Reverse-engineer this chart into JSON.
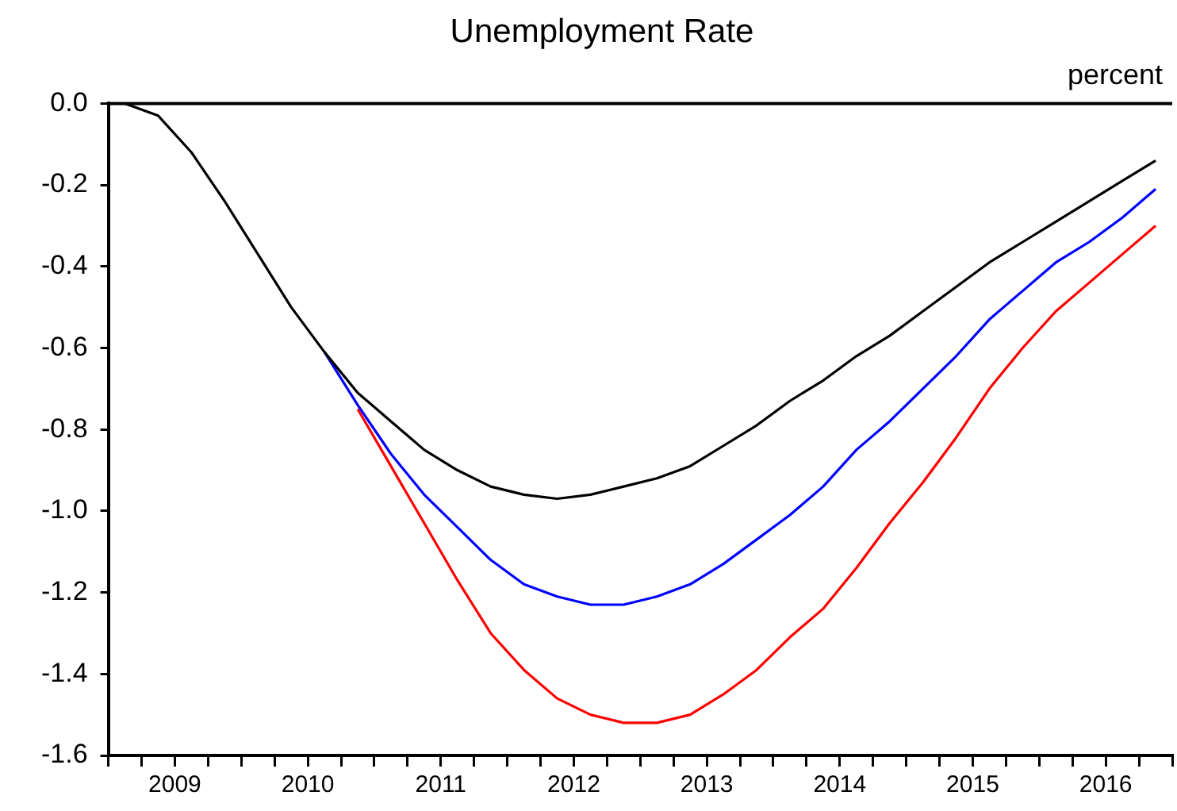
{
  "chart_data": {
    "type": "line",
    "title": "Unemployment Rate",
    "ylabel": "percent",
    "x": [
      2009.125,
      2009.375,
      2009.625,
      2009.875,
      2010.125,
      2010.375,
      2010.625,
      2010.875,
      2011.125,
      2011.375,
      2011.625,
      2011.875,
      2012.125,
      2012.375,
      2012.625,
      2012.875,
      2013.125,
      2013.375,
      2013.625,
      2013.875,
      2014.125,
      2014.375,
      2014.625,
      2014.875,
      2015.125,
      2015.375,
      2015.625,
      2015.875,
      2016.125,
      2016.375,
      2016.625,
      2016.875
    ],
    "series": [
      {
        "color": "#000000",
        "values": [
          0.0,
          -0.03,
          -0.12,
          -0.24,
          -0.37,
          -0.5,
          -0.61,
          -0.71,
          -0.78,
          -0.85,
          -0.9,
          -0.94,
          -0.96,
          -0.97,
          -0.96,
          -0.94,
          -0.92,
          -0.89,
          -0.84,
          -0.79,
          -0.73,
          -0.68,
          -0.62,
          -0.57,
          -0.51,
          -0.45,
          -0.39,
          -0.34,
          -0.29,
          -0.24,
          -0.19,
          -0.14
        ]
      },
      {
        "color": "#0000ff",
        "values": [
          null,
          null,
          null,
          null,
          null,
          null,
          -0.61,
          -0.74,
          -0.86,
          -0.96,
          -1.04,
          -1.12,
          -1.18,
          -1.21,
          -1.23,
          -1.23,
          -1.21,
          -1.18,
          -1.13,
          -1.07,
          -1.01,
          -0.94,
          -0.85,
          -0.78,
          -0.7,
          -0.62,
          -0.53,
          -0.46,
          -0.39,
          -0.34,
          -0.28,
          -0.21
        ]
      },
      {
        "color": "#ff0000",
        "values": [
          null,
          null,
          null,
          null,
          null,
          null,
          null,
          -0.75,
          -0.89,
          -1.03,
          -1.17,
          -1.3,
          -1.39,
          -1.46,
          -1.5,
          -1.52,
          -1.52,
          -1.5,
          -1.45,
          -1.39,
          -1.31,
          -1.24,
          -1.14,
          -1.03,
          -0.93,
          -0.82,
          -0.7,
          -0.6,
          -0.51,
          -0.44,
          -0.37,
          -0.3
        ]
      }
    ],
    "xlim": [
      2009,
      2017
    ],
    "xticks": [
      {
        "value": 2009,
        "label": null
      },
      {
        "value": 2009.25,
        "label": null
      },
      {
        "value": 2009.5,
        "label": "2009"
      },
      {
        "value": 2009.75,
        "label": null
      },
      {
        "value": 2010,
        "label": null
      },
      {
        "value": 2010.25,
        "label": null
      },
      {
        "value": 2010.5,
        "label": "2010"
      },
      {
        "value": 2010.75,
        "label": null
      },
      {
        "value": 2011,
        "label": null
      },
      {
        "value": 2011.25,
        "label": null
      },
      {
        "value": 2011.5,
        "label": "2011"
      },
      {
        "value": 2011.75,
        "label": null
      },
      {
        "value": 2012,
        "label": null
      },
      {
        "value": 2012.25,
        "label": null
      },
      {
        "value": 2012.5,
        "label": "2012"
      },
      {
        "value": 2012.75,
        "label": null
      },
      {
        "value": 2013,
        "label": null
      },
      {
        "value": 2013.25,
        "label": null
      },
      {
        "value": 2013.5,
        "label": "2013"
      },
      {
        "value": 2013.75,
        "label": null
      },
      {
        "value": 2014,
        "label": null
      },
      {
        "value": 2014.25,
        "label": null
      },
      {
        "value": 2014.5,
        "label": "2014"
      },
      {
        "value": 2014.75,
        "label": null
      },
      {
        "value": 2015,
        "label": null
      },
      {
        "value": 2015.25,
        "label": null
      },
      {
        "value": 2015.5,
        "label": "2015"
      },
      {
        "value": 2015.75,
        "label": null
      },
      {
        "value": 2016,
        "label": null
      },
      {
        "value": 2016.25,
        "label": null
      },
      {
        "value": 2016.5,
        "label": "2016"
      },
      {
        "value": 2016.75,
        "label": null
      },
      {
        "value": 2017,
        "label": null
      }
    ],
    "ylim": [
      -1.6,
      0
    ],
    "yticks": [
      -1.6,
      -1.4,
      -1.2,
      {
        "value": -1,
        "label": "-1.0"
      },
      -0.8,
      -0.6,
      -0.4,
      -0.2,
      {
        "value": 0,
        "label": "0.0"
      }
    ],
    "ref_lines": [
      {
        "axis": "y",
        "value": 0,
        "color": "#000000"
      }
    ],
    "grid": false,
    "legend": false,
    "marker": "none",
    "line_style": "solid"
  }
}
